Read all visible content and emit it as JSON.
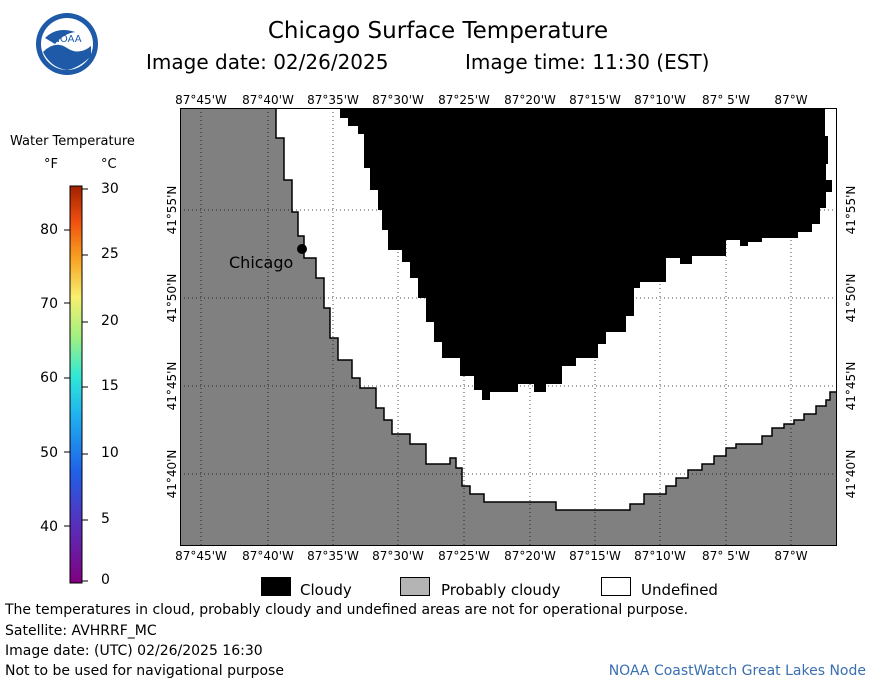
{
  "header": {
    "title": "Chicago Surface Temperature",
    "image_date": "Image date: 02/26/2025",
    "image_time": "Image time: 11:30 (EST)"
  },
  "logo": {
    "text": "NOAA"
  },
  "legend": {
    "title": "Water Temperature",
    "unit_f": "°F",
    "unit_c": "°C",
    "f_ticks": [
      "80",
      "70",
      "60",
      "50",
      "40"
    ],
    "c_ticks": [
      "30",
      "25",
      "20",
      "15",
      "10",
      "5",
      "0"
    ]
  },
  "map": {
    "lon_labels": [
      "87°45'W",
      "87°40'W",
      "87°35'W",
      "87°30'W",
      "87°25'W",
      "87°20'W",
      "87°15'W",
      "87°10'W",
      "87° 5'W",
      "87°W"
    ],
    "lat_labels": [
      "41°55'N",
      "41°50'N",
      "41°45'N",
      "41°40'N"
    ],
    "city_label": "Chicago",
    "colors": {
      "land": "#808080",
      "cloudy": "#000000",
      "undefined": "#ffffff"
    }
  },
  "key": {
    "cloudy": "Cloudy",
    "probably_cloudy": "Probably cloudy",
    "undefined": "Undefined"
  },
  "footer": {
    "line1": "The temperatures in cloud, probably cloudy and undefined areas are not for operational purpose.",
    "satellite": "Satellite: AVHRRF_MC",
    "utc_date": "Image date: (UTC) 02/26/2025  16:30",
    "nav_note": "Not to be used for navigational purpose",
    "credit": "NOAA CoastWatch Great Lakes Node"
  }
}
